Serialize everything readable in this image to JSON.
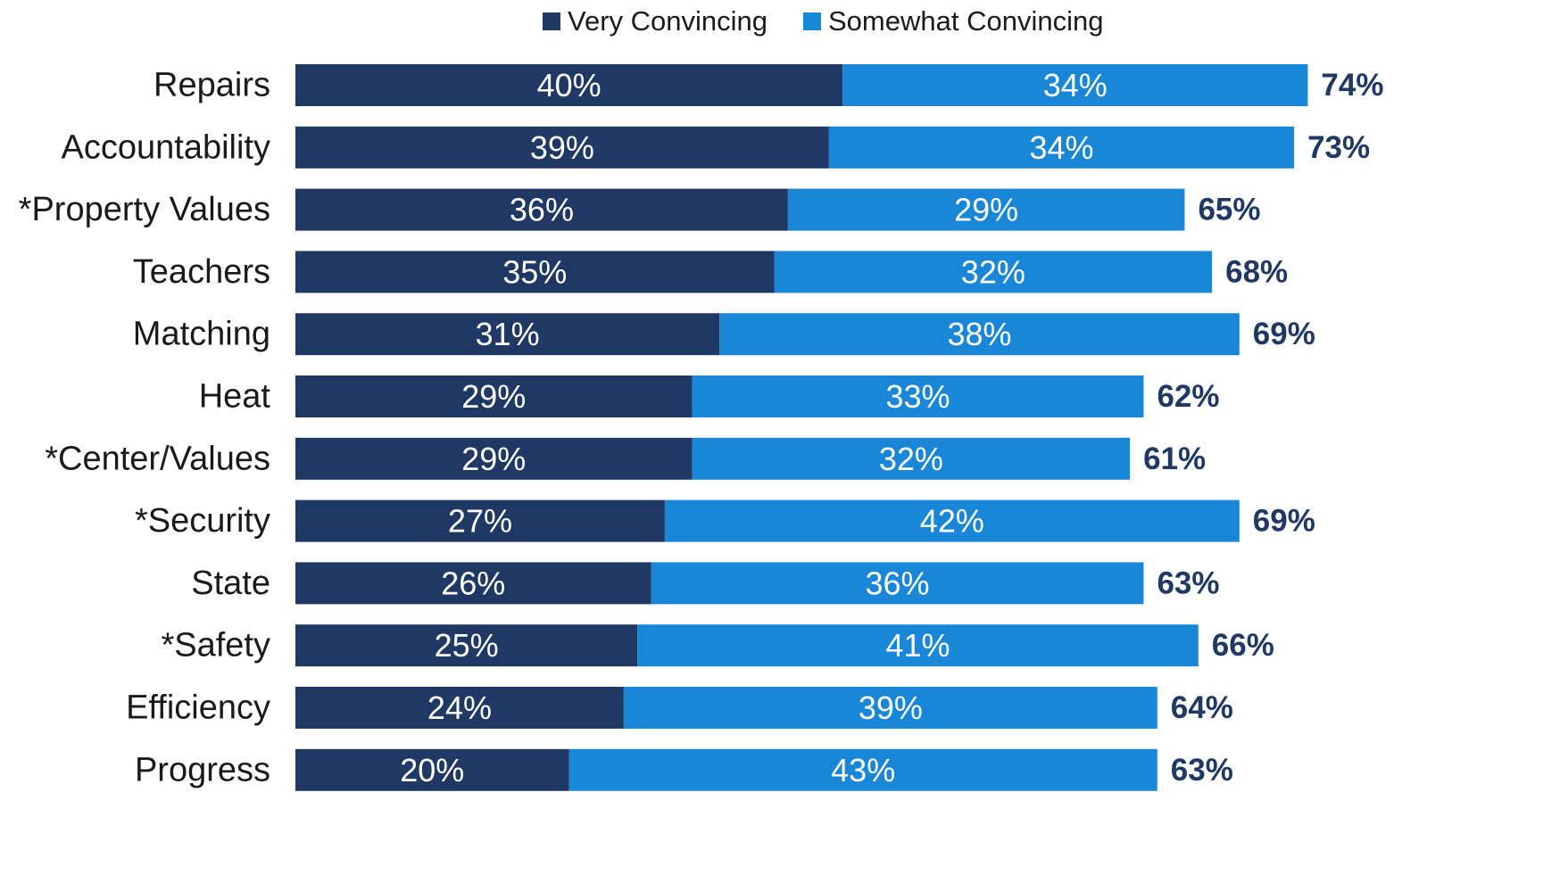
{
  "chart_data": {
    "type": "bar",
    "orientation": "horizontal",
    "stacked": true,
    "categories": [
      "Repairs",
      "Accountability",
      "*Property Values",
      "Teachers",
      "Matching",
      "Heat",
      "*Center/Values",
      "*Security",
      "State",
      "*Safety",
      "Efficiency",
      "Progress"
    ],
    "series": [
      {
        "name": "Very Convincing",
        "color": "#1f3864",
        "values": [
          40,
          39,
          36,
          35,
          31,
          29,
          29,
          27,
          26,
          25,
          24,
          20
        ]
      },
      {
        "name": "Somewhat Convincing",
        "color": "#1a86d8",
        "values": [
          34,
          34,
          29,
          32,
          38,
          33,
          32,
          42,
          36,
          41,
          39,
          43
        ]
      }
    ],
    "totals": [
      74,
      73,
      65,
      68,
      69,
      62,
      61,
      69,
      63,
      66,
      64,
      63
    ],
    "value_suffix": "%",
    "legend_position": "top",
    "grid": false,
    "total_label_color": "#1f3864",
    "title": "",
    "xlabel": "",
    "ylabel": ""
  }
}
